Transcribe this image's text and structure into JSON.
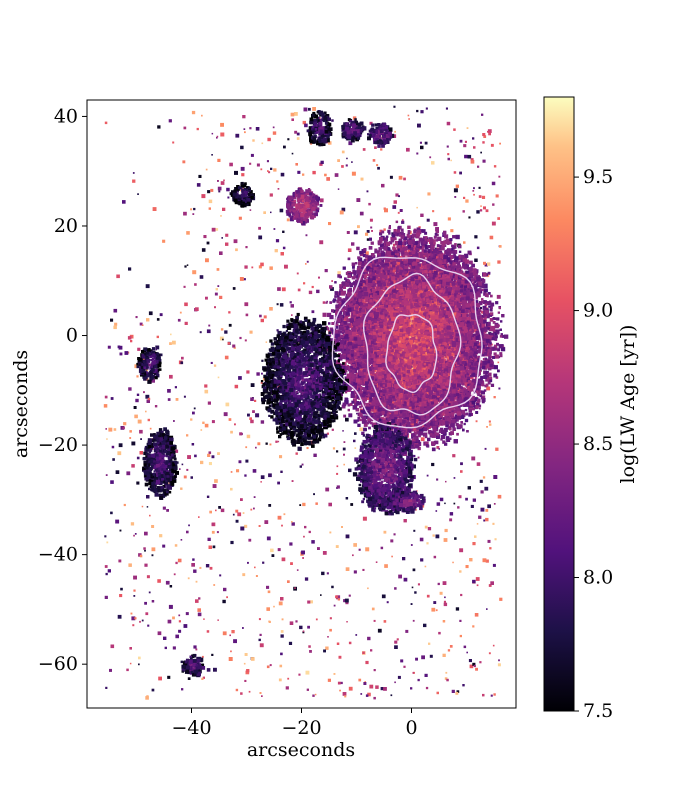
{
  "chart_data": {
    "type": "heatmap",
    "title": "",
    "xlabel": "arcseconds",
    "ylabel": "arcseconds",
    "xlim": [
      -59,
      19
    ],
    "ylim": [
      -68,
      43
    ],
    "x_ticks": [
      {
        "value": -40,
        "label": "−40"
      },
      {
        "value": -20,
        "label": "−20"
      },
      {
        "value": 0,
        "label": "0"
      }
    ],
    "y_ticks": [
      {
        "value": 40,
        "label": "40"
      },
      {
        "value": 20,
        "label": "20"
      },
      {
        "value": 0,
        "label": "0"
      },
      {
        "value": -20,
        "label": "−20"
      },
      {
        "value": -40,
        "label": "−40"
      },
      {
        "value": -60,
        "label": "−60"
      }
    ],
    "colorbar": {
      "label": "log(LW Age [yr])",
      "range": [
        7.5,
        9.8
      ],
      "colormap": "magma",
      "ticks": [
        {
          "value": 9.5,
          "label": "9.5"
        },
        {
          "value": 9.0,
          "label": "9.0"
        },
        {
          "value": 8.5,
          "label": "8.5"
        },
        {
          "value": 8.0,
          "label": "8.0"
        },
        {
          "value": 7.5,
          "label": "7.5"
        }
      ]
    },
    "structures": [
      {
        "name": "central-bulge",
        "x": 0,
        "y": -1,
        "rx": 6,
        "ry": 9,
        "value": 9.55
      },
      {
        "name": "inner-disk",
        "x": 0,
        "y": 0,
        "rx": 12,
        "ry": 16,
        "value": 9.1
      },
      {
        "name": "outer-envelope",
        "x": 0,
        "y": 0,
        "rx": 15,
        "ry": 19,
        "value": 8.7
      },
      {
        "name": "west-arm",
        "x": -20,
        "y": -8,
        "rx": 7,
        "ry": 11,
        "value": 8.0
      },
      {
        "name": "south-plume",
        "x": -5,
        "y": -24,
        "rx": 5,
        "ry": 8,
        "value": 8.25
      },
      {
        "name": "clump-south-east",
        "x": -1,
        "y": -30,
        "rx": 3,
        "ry": 2,
        "value": 8.3
      },
      {
        "name": "clump-north-1",
        "x": -17,
        "y": 38,
        "rx": 2,
        "ry": 3,
        "value": 8.0
      },
      {
        "name": "clump-north-2",
        "x": -11,
        "y": 38,
        "rx": 2,
        "ry": 2,
        "value": 8.1
      },
      {
        "name": "clump-north-3",
        "x": -6,
        "y": 37,
        "rx": 2,
        "ry": 2,
        "value": 8.2
      },
      {
        "name": "clump-nw-1",
        "x": -31,
        "y": 26,
        "rx": 2,
        "ry": 2,
        "value": 7.9
      },
      {
        "name": "clump-nw-2",
        "x": -20,
        "y": 24,
        "rx": 3,
        "ry": 3,
        "value": 8.7
      },
      {
        "name": "clump-west-1",
        "x": -48,
        "y": -5,
        "rx": 2,
        "ry": 3,
        "value": 8.0
      },
      {
        "name": "clump-west-2",
        "x": -46,
        "y": -23,
        "rx": 3,
        "ry": 6,
        "value": 8.0
      },
      {
        "name": "clump-sw-1",
        "x": -40,
        "y": -60,
        "rx": 2,
        "ry": 2,
        "value": 8.1
      }
    ],
    "contours": [
      {
        "level": "outer",
        "rx": 13.5,
        "ry": 15.5,
        "x": -0.5,
        "y": -1
      },
      {
        "level": "middle",
        "rx": 8.5,
        "ry": 12.5,
        "x": 0,
        "y": -2
      },
      {
        "level": "inner",
        "rx": 4.5,
        "ry": 7,
        "x": 0,
        "y": -3
      }
    ]
  }
}
